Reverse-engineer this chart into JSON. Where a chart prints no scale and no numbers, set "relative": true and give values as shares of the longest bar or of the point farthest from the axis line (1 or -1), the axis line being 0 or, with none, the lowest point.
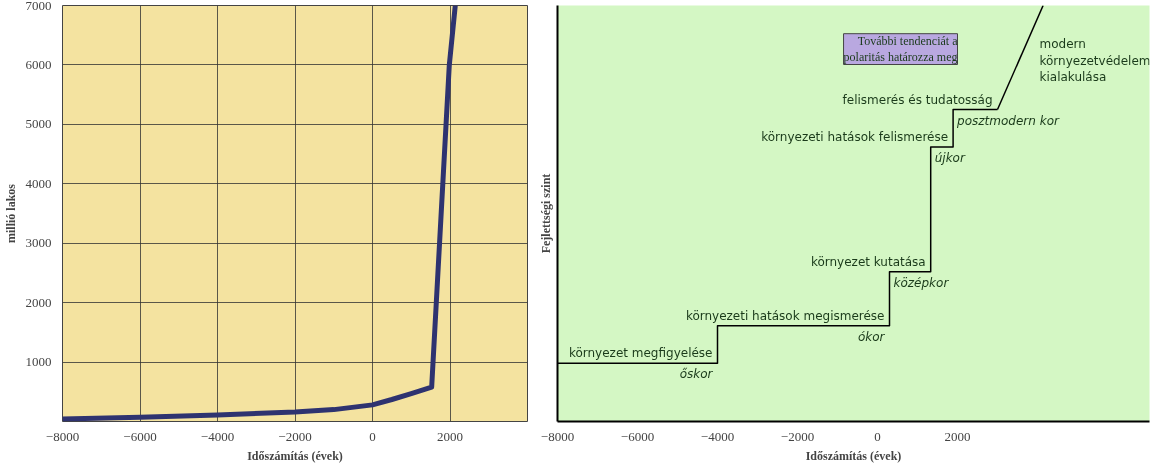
{
  "chart_data": [
    {
      "type": "line",
      "xlabel": "Időszámítás (évek)",
      "ylabel": "millió lakos",
      "xlim": [
        -8000,
        4000
      ],
      "ylim": [
        0,
        7000
      ],
      "xticks": [
        -8000,
        -6000,
        -4000,
        -2000,
        0,
        2000
      ],
      "yticks": [
        1000,
        2000,
        3000,
        4000,
        5000,
        6000,
        7000
      ],
      "grid": true,
      "series": [
        {
          "color": "#2e3370",
          "x": [
            -8000,
            -6000,
            -4000,
            -2000,
            -1000,
            0,
            500,
            1000,
            1527,
            1982,
            2136
          ],
          "values": [
            40,
            70,
            110,
            160,
            200,
            280,
            370,
            470,
            580,
            6000,
            7000
          ]
        }
      ]
    },
    {
      "type": "step",
      "xlabel": "Időszámítás (évek)",
      "ylabel": "Fejlettségi szint",
      "relative": true,
      "xlim": [
        -8000,
        6800
      ],
      "xticks": [
        -8000,
        -6000,
        -4000,
        -2000,
        0,
        2000
      ],
      "grid": false,
      "series": [
        {
          "type": "step",
          "color": "#000000",
          "x": [
            -8000,
            -4000,
            300,
            1330,
            1890,
            3000
          ],
          "values": [
            0.14,
            0.23,
            0.36,
            0.66,
            0.75,
            0.75
          ]
        },
        {
          "type": "line",
          "color": "#000000",
          "x": [
            3000,
            4140
          ],
          "values": [
            0.75,
            1.0
          ]
        }
      ],
      "annotations": [
        "környezet megfigyelése",
        "őskor",
        "környezeti hatások megismerése",
        "ókor",
        "környezet kutatása",
        "középkor",
        "környezeti hatások felismerése",
        "újkor",
        "felismerés és tudatosság",
        "posztmodern kor",
        "modern\nkörnyezetvédelem\nkialakulása",
        "További tendenciát a\npolaritás határozza meg"
      ]
    }
  ]
}
